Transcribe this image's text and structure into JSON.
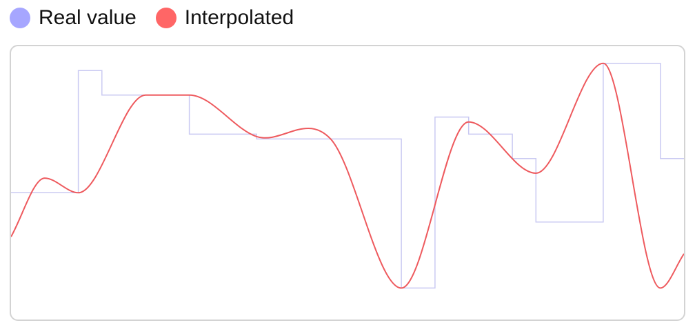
{
  "legend": {
    "real_label": "Real value",
    "interp_label": "Interpolated"
  },
  "colors": {
    "real": "#a6a6ff",
    "real_line": "#c9c9f2",
    "interp": "#ff6666",
    "interp_line": "#ee5a5e",
    "frame": "#d3d3d3"
  },
  "chart_data": {
    "type": "line",
    "title": "",
    "xlabel": "",
    "ylabel": "",
    "grid": false,
    "legend_position": "top-left",
    "xlim": [
      0,
      20
    ],
    "ylim": [
      0,
      100
    ],
    "series": [
      {
        "name": "Real value",
        "style": "step",
        "x": [
          0,
          2,
          2.7,
          5.3,
          7.3,
          9.5,
          11.6,
          12.6,
          13.6,
          14.9,
          15.6,
          17.6,
          19.3,
          20
        ],
        "values": [
          42,
          92,
          82,
          66,
          64,
          64,
          3,
          73,
          66,
          56,
          30,
          95,
          56,
          56
        ]
      },
      {
        "name": "Interpolated",
        "style": "smooth",
        "x": [
          0,
          1,
          2,
          4,
          5.3,
          7.3,
          9.5,
          11.6,
          13.6,
          15.6,
          17.6,
          19.3,
          20
        ],
        "values": [
          24,
          48,
          42,
          82,
          82,
          65,
          64,
          3,
          71,
          50,
          95,
          3,
          17
        ]
      }
    ]
  }
}
